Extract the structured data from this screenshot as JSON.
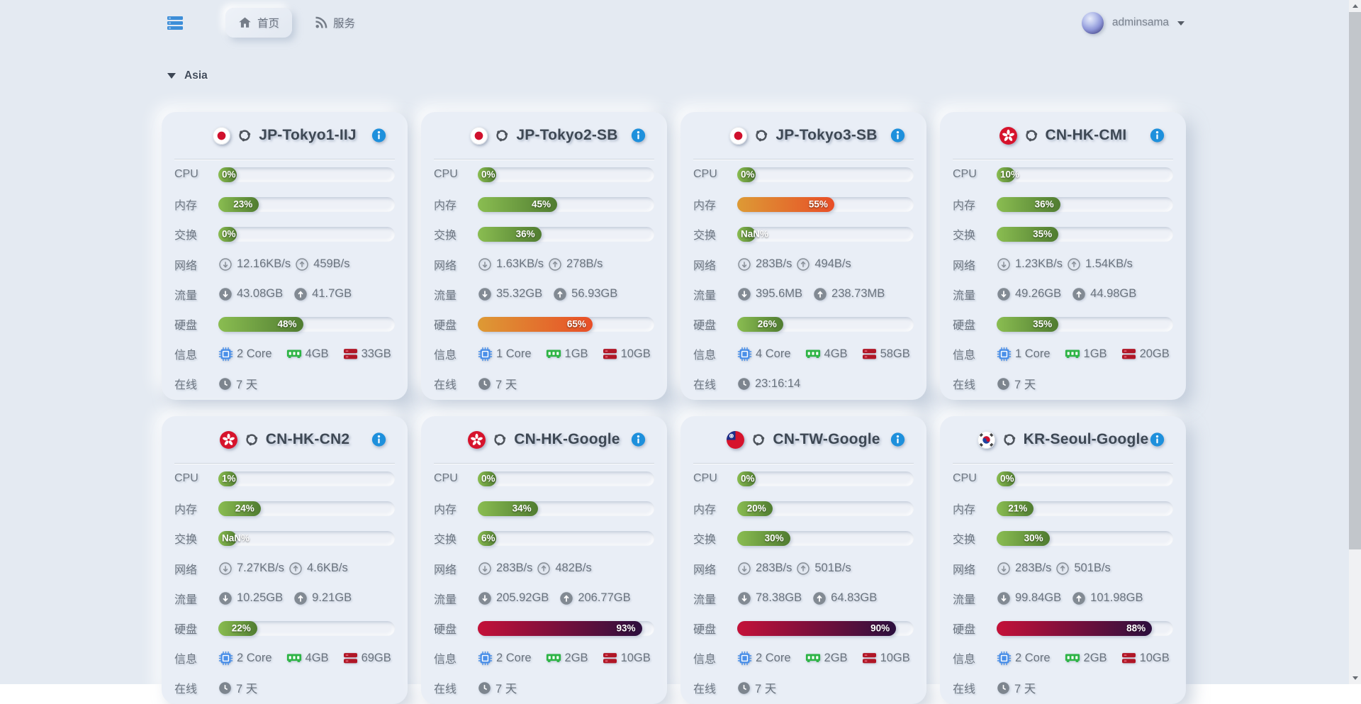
{
  "navbar": {
    "tabs": [
      {
        "label": "首页",
        "icon": "home-icon",
        "active": true
      },
      {
        "label": "服务",
        "icon": "rss-icon",
        "active": false
      }
    ],
    "user": {
      "name": "adminsama"
    }
  },
  "section": {
    "label": "Asia"
  },
  "labels": {
    "cpu": "CPU",
    "memory": "内存",
    "swap": "交换",
    "network": "网络",
    "traffic": "流量",
    "disk": "硬盘",
    "info": "信息",
    "online": "在线"
  },
  "colors": {
    "bar_green_from": "#8abd51",
    "bar_green_to": "#507c31",
    "bar_orange_from": "#dd9a35",
    "bar_orange_to": "#e84e27",
    "bar_red_from": "#c41139",
    "bar_red_to": "#2c0f3e",
    "info_icon_blue": "#1e90dc",
    "chip_blue": "#4a8fe8",
    "ram_green": "#2db445",
    "hdd_red": "#b01626",
    "brand_blue": "#3d8ed8"
  },
  "servers": [
    {
      "name": "JP-Tokyo1-IIJ",
      "flag": "jp",
      "os": "ubuntu",
      "cpu": "0%",
      "cpu_pct": 0,
      "mem": "23%",
      "mem_pct": 23,
      "swap": "0%",
      "swap_pct": 0,
      "net_down": "12.16KB/s",
      "net_up": "459B/s",
      "traffic_down": "43.08GB",
      "traffic_up": "41.7GB",
      "disk": "48%",
      "disk_pct": 48,
      "cores": "2 Core",
      "ram": "4GB",
      "storage": "33GB",
      "online": "7 天"
    },
    {
      "name": "JP-Tokyo2-SB",
      "flag": "jp",
      "os": "ubuntu",
      "cpu": "0%",
      "cpu_pct": 0,
      "mem": "45%",
      "mem_pct": 45,
      "swap": "36%",
      "swap_pct": 36,
      "net_down": "1.63KB/s",
      "net_up": "278B/s",
      "traffic_down": "35.32GB",
      "traffic_up": "56.93GB",
      "disk": "65%",
      "disk_pct": 65,
      "cores": "1 Core",
      "ram": "1GB",
      "storage": "10GB",
      "online": "7 天"
    },
    {
      "name": "JP-Tokyo3-SB",
      "flag": "jp",
      "os": "ubuntu",
      "cpu": "0%",
      "cpu_pct": 0,
      "mem": "55%",
      "mem_pct": 55,
      "swap": "NaN%",
      "swap_pct": null,
      "net_down": "283B/s",
      "net_up": "494B/s",
      "traffic_down": "395.6MB",
      "traffic_up": "238.73MB",
      "disk": "26%",
      "disk_pct": 26,
      "cores": "4 Core",
      "ram": "4GB",
      "storage": "58GB",
      "online": "23:16:14"
    },
    {
      "name": "CN-HK-CMI",
      "flag": "hk",
      "os": "ubuntu",
      "cpu": "10%",
      "cpu_pct": 10,
      "mem": "36%",
      "mem_pct": 36,
      "swap": "35%",
      "swap_pct": 35,
      "net_down": "1.23KB/s",
      "net_up": "1.54KB/s",
      "traffic_down": "49.26GB",
      "traffic_up": "44.98GB",
      "disk": "35%",
      "disk_pct": 35,
      "cores": "1 Core",
      "ram": "1GB",
      "storage": "20GB",
      "online": "7 天"
    },
    {
      "name": "CN-HK-CN2",
      "flag": "hk",
      "os": "ubuntu",
      "cpu": "1%",
      "cpu_pct": 1,
      "mem": "24%",
      "mem_pct": 24,
      "swap": "NaN%",
      "swap_pct": null,
      "net_down": "7.27KB/s",
      "net_up": "4.6KB/s",
      "traffic_down": "10.25GB",
      "traffic_up": "9.21GB",
      "disk": "22%",
      "disk_pct": 22,
      "cores": "2 Core",
      "ram": "4GB",
      "storage": "69GB",
      "online": "7 天"
    },
    {
      "name": "CN-HK-Google",
      "flag": "hk",
      "os": "ubuntu",
      "cpu": "0%",
      "cpu_pct": 0,
      "mem": "34%",
      "mem_pct": 34,
      "swap": "6%",
      "swap_pct": 6,
      "net_down": "283B/s",
      "net_up": "482B/s",
      "traffic_down": "205.92GB",
      "traffic_up": "206.77GB",
      "disk": "93%",
      "disk_pct": 93,
      "cores": "2 Core",
      "ram": "2GB",
      "storage": "10GB",
      "online": "7 天"
    },
    {
      "name": "CN-TW-Google",
      "flag": "tw",
      "os": "ubuntu",
      "cpu": "0%",
      "cpu_pct": 0,
      "mem": "20%",
      "mem_pct": 20,
      "swap": "30%",
      "swap_pct": 30,
      "net_down": "283B/s",
      "net_up": "501B/s",
      "traffic_down": "78.38GB",
      "traffic_up": "64.83GB",
      "disk": "90%",
      "disk_pct": 90,
      "cores": "2 Core",
      "ram": "2GB",
      "storage": "10GB",
      "online": "7 天"
    },
    {
      "name": "KR-Seoul-Google",
      "flag": "kr",
      "os": "ubuntu",
      "cpu": "0%",
      "cpu_pct": 0,
      "mem": "21%",
      "mem_pct": 21,
      "swap": "30%",
      "swap_pct": 30,
      "net_down": "283B/s",
      "net_up": "501B/s",
      "traffic_down": "99.84GB",
      "traffic_up": "101.98GB",
      "disk": "88%",
      "disk_pct": 88,
      "cores": "2 Core",
      "ram": "2GB",
      "storage": "10GB",
      "online": "7 天"
    }
  ]
}
